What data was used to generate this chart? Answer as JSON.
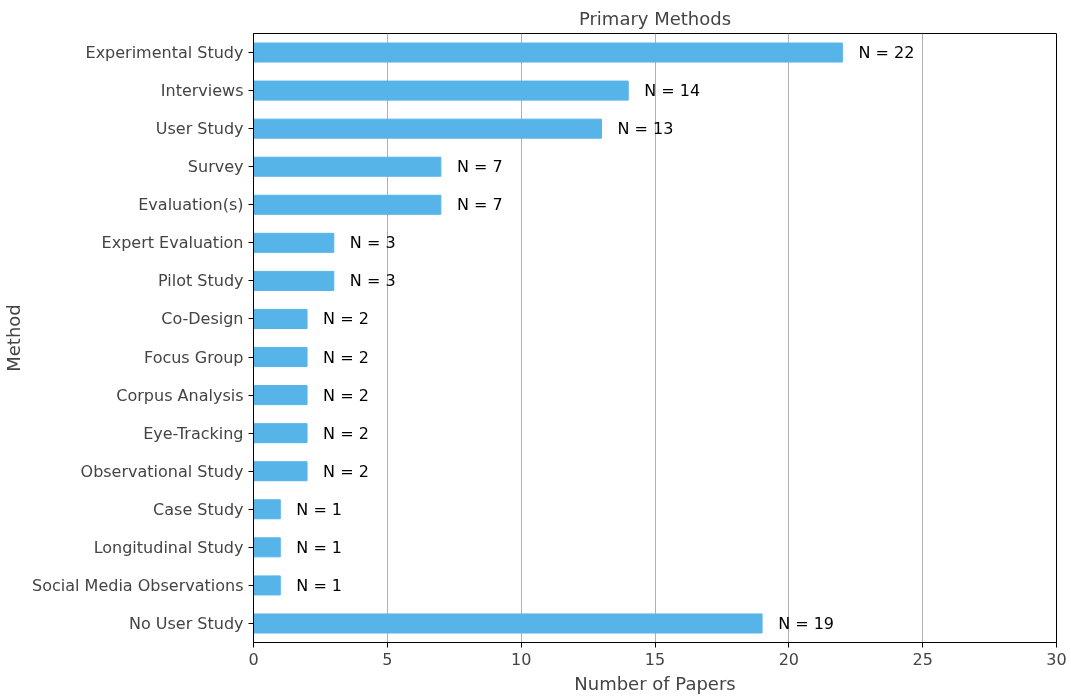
{
  "chart_data": {
    "type": "bar",
    "orientation": "horizontal",
    "title": "Primary Methods",
    "xlabel": "Number of Papers",
    "ylabel": "Method",
    "categories": [
      "Experimental Study",
      "Interviews",
      "User Study",
      "Survey",
      "Evaluation(s)",
      "Expert Evaluation",
      "Pilot Study",
      "Co-Design",
      "Focus Group",
      "Corpus Analysis",
      "Eye-Tracking",
      "Observational Study",
      "Case Study",
      "Longitudinal Study",
      "Social Media Observations",
      "No User Study"
    ],
    "values": [
      22,
      14,
      13,
      7,
      7,
      3,
      3,
      2,
      2,
      2,
      2,
      2,
      1,
      1,
      1,
      19
    ],
    "value_labels": [
      "N = 22",
      "N = 14",
      "N = 13",
      "N = 7",
      "N = 7",
      "N = 3",
      "N = 3",
      "N = 2",
      "N = 2",
      "N = 2",
      "N = 2",
      "N = 2",
      "N = 1",
      "N = 1",
      "N = 1",
      "N = 19"
    ],
    "color": "#56b4e9",
    "xlim": [
      0,
      30
    ],
    "xticks": [
      0,
      5,
      10,
      15,
      20,
      25,
      30
    ],
    "grid": "x"
  }
}
